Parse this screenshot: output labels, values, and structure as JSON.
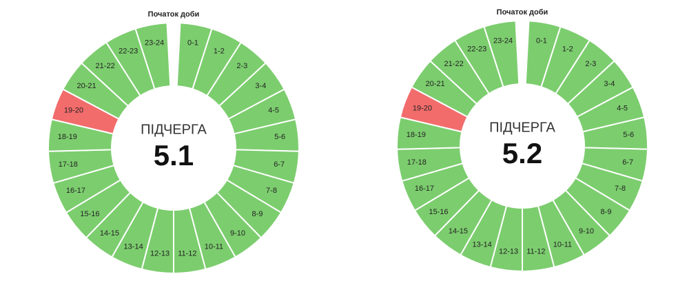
{
  "wheels": [
    {
      "start_label": "Початок доби",
      "caption": "ПІДЧЕРГА",
      "number": "5.1",
      "segments": [
        {
          "label": "0-1",
          "color": "#7ccd6e"
        },
        {
          "label": "1-2",
          "color": "#7ccd6e"
        },
        {
          "label": "2-3",
          "color": "#7ccd6e"
        },
        {
          "label": "3-4",
          "color": "#7ccd6e"
        },
        {
          "label": "4-5",
          "color": "#7ccd6e"
        },
        {
          "label": "5-6",
          "color": "#7ccd6e"
        },
        {
          "label": "6-7",
          "color": "#7ccd6e"
        },
        {
          "label": "7-8",
          "color": "#7ccd6e"
        },
        {
          "label": "8-9",
          "color": "#7ccd6e"
        },
        {
          "label": "9-10",
          "color": "#7ccd6e"
        },
        {
          "label": "10-11",
          "color": "#7ccd6e"
        },
        {
          "label": "11-12",
          "color": "#7ccd6e"
        },
        {
          "label": "12-13",
          "color": "#7ccd6e"
        },
        {
          "label": "13-14",
          "color": "#7ccd6e"
        },
        {
          "label": "14-15",
          "color": "#7ccd6e"
        },
        {
          "label": "15-16",
          "color": "#7ccd6e"
        },
        {
          "label": "16-17",
          "color": "#7ccd6e"
        },
        {
          "label": "17-18",
          "color": "#7ccd6e"
        },
        {
          "label": "18-19",
          "color": "#7ccd6e"
        },
        {
          "label": "19-20",
          "color": "#f26c6c"
        },
        {
          "label": "20-21",
          "color": "#7ccd6e"
        },
        {
          "label": "21-22",
          "color": "#7ccd6e"
        },
        {
          "label": "22-23",
          "color": "#7ccd6e"
        },
        {
          "label": "23-24",
          "color": "#7ccd6e"
        }
      ]
    },
    {
      "start_label": "Початок доби",
      "caption": "ПІДЧЕРГА",
      "number": "5.2",
      "segments": [
        {
          "label": "0-1",
          "color": "#7ccd6e"
        },
        {
          "label": "1-2",
          "color": "#7ccd6e"
        },
        {
          "label": "2-3",
          "color": "#7ccd6e"
        },
        {
          "label": "3-4",
          "color": "#7ccd6e"
        },
        {
          "label": "4-5",
          "color": "#7ccd6e"
        },
        {
          "label": "5-6",
          "color": "#7ccd6e"
        },
        {
          "label": "6-7",
          "color": "#7ccd6e"
        },
        {
          "label": "7-8",
          "color": "#7ccd6e"
        },
        {
          "label": "8-9",
          "color": "#7ccd6e"
        },
        {
          "label": "9-10",
          "color": "#7ccd6e"
        },
        {
          "label": "10-11",
          "color": "#7ccd6e"
        },
        {
          "label": "11-12",
          "color": "#7ccd6e"
        },
        {
          "label": "12-13",
          "color": "#7ccd6e"
        },
        {
          "label": "13-14",
          "color": "#7ccd6e"
        },
        {
          "label": "14-15",
          "color": "#7ccd6e"
        },
        {
          "label": "15-16",
          "color": "#7ccd6e"
        },
        {
          "label": "16-17",
          "color": "#7ccd6e"
        },
        {
          "label": "17-18",
          "color": "#7ccd6e"
        },
        {
          "label": "18-19",
          "color": "#7ccd6e"
        },
        {
          "label": "19-20",
          "color": "#f26c6c"
        },
        {
          "label": "20-21",
          "color": "#7ccd6e"
        },
        {
          "label": "21-22",
          "color": "#7ccd6e"
        },
        {
          "label": "22-23",
          "color": "#7ccd6e"
        },
        {
          "label": "23-24",
          "color": "#7ccd6e"
        }
      ]
    }
  ]
}
